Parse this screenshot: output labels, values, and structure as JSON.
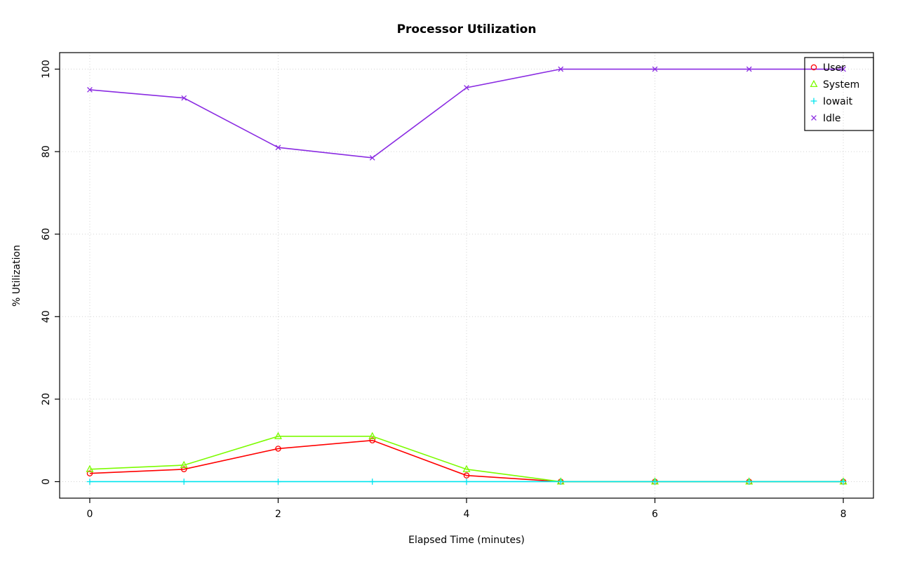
{
  "chart_data": {
    "type": "line",
    "title": "Processor Utilization",
    "xlabel": "Elapsed Time (minutes)",
    "ylabel": "% Utilization",
    "x": [
      0,
      1,
      2,
      3,
      4,
      5,
      6,
      7,
      8
    ],
    "series": [
      {
        "name": "User",
        "color": "#ff0000",
        "marker": "circle",
        "values": [
          2,
          3,
          8,
          10,
          1.5,
          0,
          0,
          0,
          0
        ]
      },
      {
        "name": "System",
        "color": "#7cfc00",
        "marker": "triangle",
        "values": [
          3,
          4,
          11,
          11,
          3,
          0,
          0,
          0,
          0
        ]
      },
      {
        "name": "Iowait",
        "color": "#00e5ee",
        "marker": "plus",
        "values": [
          0,
          0,
          0,
          0,
          0,
          0,
          0,
          0,
          0
        ]
      },
      {
        "name": "Idle",
        "color": "#8a2be2",
        "marker": "x",
        "values": [
          95,
          93,
          81,
          78.5,
          95.5,
          100,
          100,
          100,
          100
        ]
      }
    ],
    "xticks": [
      0,
      2,
      4,
      6,
      8
    ],
    "yticks": [
      0,
      20,
      40,
      60,
      80,
      100
    ],
    "xlim": [
      0,
      8
    ],
    "ylim": [
      0,
      100
    ],
    "grid": true,
    "grid_style": "dotted",
    "legend_position": "top-right",
    "legend_entries": [
      "User",
      "System",
      "Iowait",
      "Idle"
    ]
  },
  "layout_colors": {
    "grid": "#d3d3d3",
    "axis": "#000000",
    "background": "#ffffff"
  }
}
